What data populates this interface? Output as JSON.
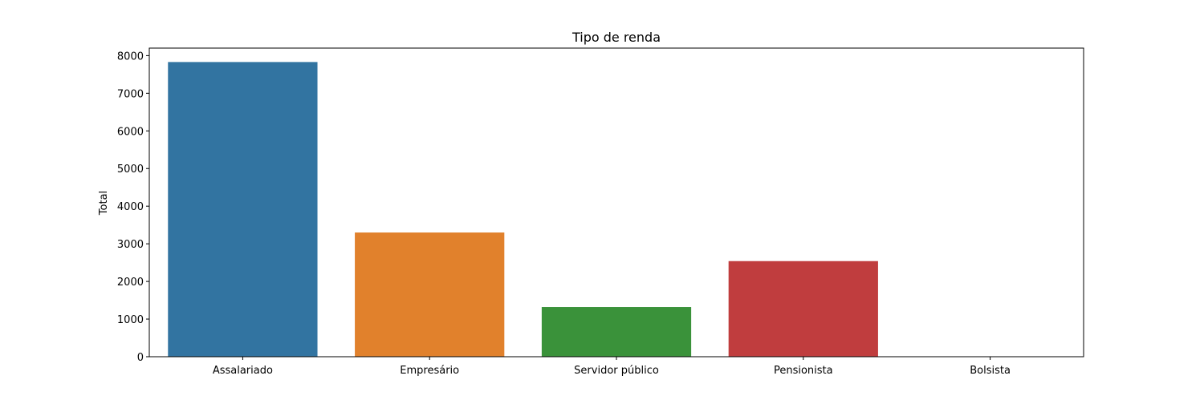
{
  "chart_data": {
    "type": "bar",
    "title": "Tipo de renda",
    "xlabel": "",
    "ylabel": "Total",
    "categories": [
      "Assalariado",
      "Empresário",
      "Servidor público",
      "Pensionista",
      "Bolsista"
    ],
    "values": [
      7830,
      3300,
      1320,
      2540,
      7
    ],
    "colors": [
      "#3274a1",
      "#e1812c",
      "#3a923a",
      "#c03d3e",
      "#9372b2"
    ],
    "ylim": [
      0,
      8200
    ],
    "yticks": [
      0,
      1000,
      2000,
      3000,
      4000,
      5000,
      6000,
      7000,
      8000
    ],
    "grid": false,
    "legend": "none"
  }
}
